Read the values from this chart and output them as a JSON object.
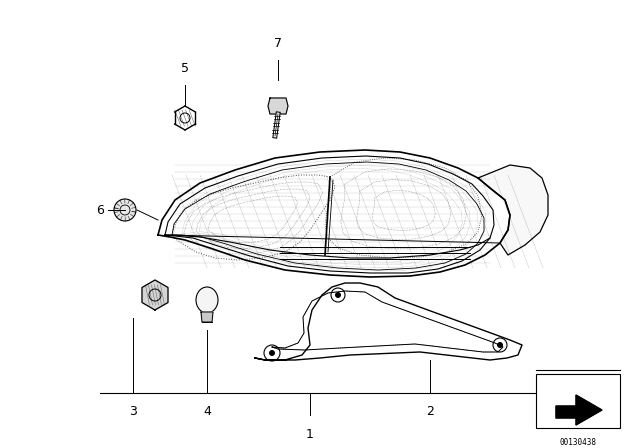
{
  "bg_color": "#ffffff",
  "line_color": "#000000",
  "figsize": [
    6.4,
    4.48
  ],
  "dpi": 100,
  "part_label_fontsize": 9,
  "diagram_number": "00130438"
}
